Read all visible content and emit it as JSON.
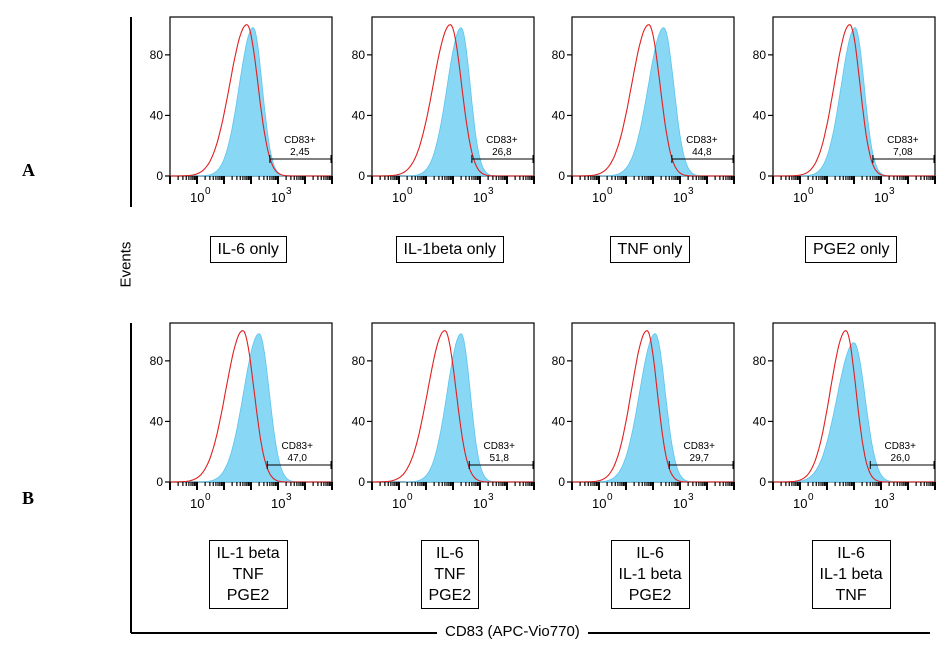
{
  "figure": {
    "rows": [
      {
        "label": "A",
        "panels": [
          {
            "caption": [
              "IL-6 only"
            ],
            "gate_label": "CD83+",
            "gate_value": "2,45"
          },
          {
            "caption": [
              "IL-1beta only"
            ],
            "gate_label": "CD83+",
            "gate_value": "26,8"
          },
          {
            "caption": [
              "TNF only"
            ],
            "gate_label": "CD83+",
            "gate_value": "44,8"
          },
          {
            "caption": [
              "PGE2 only"
            ],
            "gate_label": "CD83+",
            "gate_value": "7,08"
          }
        ]
      },
      {
        "label": "B",
        "panels": [
          {
            "caption": [
              "IL-1 beta",
              "TNF",
              "PGE2"
            ],
            "gate_label": "CD83+",
            "gate_value": "47,0"
          },
          {
            "caption": [
              "IL-6",
              "TNF",
              "PGE2"
            ],
            "gate_label": "CD83+",
            "gate_value": "51,8"
          },
          {
            "caption": [
              "IL-6",
              "IL-1 beta",
              "PGE2"
            ],
            "gate_label": "CD83+",
            "gate_value": "29,7"
          },
          {
            "caption": [
              "IL-6",
              "IL-1 beta",
              "TNF"
            ],
            "gate_label": "CD83+",
            "gate_value": "26,0"
          }
        ]
      }
    ],
    "y_axis_title": "Events",
    "x_axis_title": "CD83 (APC-Vio770)"
  },
  "chart_data": [
    {
      "type": "area",
      "panel": "A1",
      "x_scale": "log",
      "xlim": [
        0.1,
        100000
      ],
      "ylim": [
        0,
        105
      ],
      "y_ticks": [
        0,
        40,
        80
      ],
      "x_ticks": [
        "10^0",
        "10^3"
      ],
      "series": [
        {
          "name": "",
          "style": "filled",
          "color": "#87d7f5",
          "peak_x": 120,
          "peak_y": 98,
          "spread": 0.45
        },
        {
          "name": "",
          "style": "outline",
          "color": "#e02020",
          "peak_x": 70,
          "peak_y": 100,
          "spread": 0.55
        }
      ],
      "gate": {
        "name": "CD83+",
        "percent": 2.45,
        "range": [
          500,
          100000
        ]
      }
    },
    {
      "type": "area",
      "panel": "A2",
      "x_scale": "log",
      "xlim": [
        0.1,
        100000
      ],
      "ylim": [
        0,
        105
      ],
      "y_ticks": [
        0,
        40,
        80
      ],
      "x_ticks": [
        "10^0",
        "10^3"
      ],
      "series": [
        {
          "name": "",
          "style": "filled",
          "color": "#87d7f5",
          "peak_x": 200,
          "peak_y": 98,
          "spread": 0.45
        },
        {
          "name": "",
          "style": "outline",
          "color": "#e02020",
          "peak_x": 80,
          "peak_y": 100,
          "spread": 0.55
        }
      ],
      "gate": {
        "name": "CD83+",
        "percent": 26.8,
        "range": [
          500,
          100000
        ]
      }
    },
    {
      "type": "area",
      "panel": "A3",
      "x_scale": "log",
      "xlim": [
        0.1,
        100000
      ],
      "ylim": [
        0,
        105
      ],
      "y_ticks": [
        0,
        40,
        80
      ],
      "x_ticks": [
        "10^0",
        "10^3"
      ],
      "series": [
        {
          "name": "",
          "style": "filled",
          "color": "#87d7f5",
          "peak_x": 250,
          "peak_y": 98,
          "spread": 0.5
        },
        {
          "name": "",
          "style": "outline",
          "color": "#e02020",
          "peak_x": 70,
          "peak_y": 100,
          "spread": 0.55
        }
      ],
      "gate": {
        "name": "CD83+",
        "percent": 44.8,
        "range": [
          500,
          100000
        ]
      }
    },
    {
      "type": "area",
      "panel": "A4",
      "x_scale": "log",
      "xlim": [
        0.1,
        100000
      ],
      "ylim": [
        0,
        105
      ],
      "y_ticks": [
        0,
        40,
        80
      ],
      "x_ticks": [
        "10^0",
        "10^3"
      ],
      "series": [
        {
          "name": "",
          "style": "filled",
          "color": "#87d7f5",
          "peak_x": 110,
          "peak_y": 98,
          "spread": 0.45
        },
        {
          "name": "",
          "style": "outline",
          "color": "#e02020",
          "peak_x": 70,
          "peak_y": 100,
          "spread": 0.5
        }
      ],
      "gate": {
        "name": "CD83+",
        "percent": 7.08,
        "range": [
          500,
          100000
        ]
      }
    },
    {
      "type": "area",
      "panel": "B1",
      "x_scale": "log",
      "xlim": [
        0.1,
        100000
      ],
      "ylim": [
        0,
        105
      ],
      "y_ticks": [
        0,
        40,
        80
      ],
      "x_ticks": [
        "10^0",
        "10^3"
      ],
      "series": [
        {
          "name": "",
          "style": "filled",
          "color": "#87d7f5",
          "peak_x": 200,
          "peak_y": 98,
          "spread": 0.5
        },
        {
          "name": "",
          "style": "outline",
          "color": "#e02020",
          "peak_x": 50,
          "peak_y": 100,
          "spread": 0.55
        }
      ],
      "gate": {
        "name": "CD83+",
        "percent": 47.0,
        "range": [
          400,
          100000
        ]
      }
    },
    {
      "type": "area",
      "panel": "B2",
      "x_scale": "log",
      "xlim": [
        0.1,
        100000
      ],
      "ylim": [
        0,
        105
      ],
      "y_ticks": [
        0,
        40,
        80
      ],
      "x_ticks": [
        "10^0",
        "10^3"
      ],
      "series": [
        {
          "name": "",
          "style": "filled",
          "color": "#87d7f5",
          "peak_x": 200,
          "peak_y": 98,
          "spread": 0.45
        },
        {
          "name": "",
          "style": "outline",
          "color": "#e02020",
          "peak_x": 50,
          "peak_y": 100,
          "spread": 0.55
        }
      ],
      "gate": {
        "name": "CD83+",
        "percent": 51.8,
        "range": [
          400,
          100000
        ]
      }
    },
    {
      "type": "area",
      "panel": "B3",
      "x_scale": "log",
      "xlim": [
        0.1,
        100000
      ],
      "ylim": [
        0,
        105
      ],
      "y_ticks": [
        0,
        40,
        80
      ],
      "x_ticks": [
        "10^0",
        "10^3"
      ],
      "series": [
        {
          "name": "",
          "style": "filled",
          "color": "#87d7f5",
          "peak_x": 120,
          "peak_y": 98,
          "spread": 0.5
        },
        {
          "name": "",
          "style": "outline",
          "color": "#e02020",
          "peak_x": 60,
          "peak_y": 100,
          "spread": 0.5
        }
      ],
      "gate": {
        "name": "CD83+",
        "percent": 29.7,
        "range": [
          400,
          100000
        ]
      }
    },
    {
      "type": "area",
      "panel": "B4",
      "x_scale": "log",
      "xlim": [
        0.1,
        100000
      ],
      "ylim": [
        0,
        105
      ],
      "y_ticks": [
        0,
        40,
        80
      ],
      "x_ticks": [
        "10^0",
        "10^3"
      ],
      "series": [
        {
          "name": "",
          "style": "filled",
          "color": "#87d7f5",
          "peak_x": 100,
          "peak_y": 92,
          "spread": 0.55
        },
        {
          "name": "",
          "style": "outline",
          "color": "#e02020",
          "peak_x": 50,
          "peak_y": 100,
          "spread": 0.5
        }
      ],
      "gate": {
        "name": "CD83+",
        "percent": 26.0,
        "range": [
          400,
          100000
        ]
      }
    }
  ]
}
